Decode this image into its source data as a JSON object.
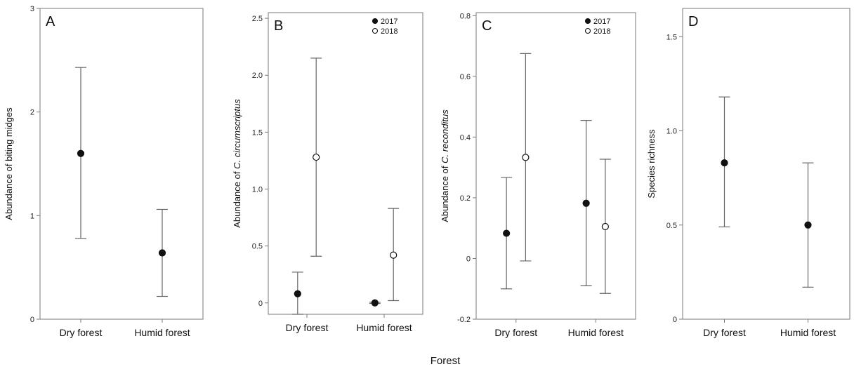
{
  "figure": {
    "x_title": "Forest"
  },
  "chart_data": [
    {
      "type": "scatter",
      "panel": "A",
      "ylabel_parts": [
        {
          "text": "Abundance of biting midges",
          "italic": false
        }
      ],
      "ylim": [
        0,
        3
      ],
      "yticks": [
        0,
        1,
        2,
        3
      ],
      "yticklabels": [
        "0",
        "1",
        "2",
        "3"
      ],
      "categories": [
        "Dry forest",
        "Humid forest"
      ],
      "legend": false,
      "series": [
        {
          "color": "#111111",
          "filled": true,
          "points": [
            {
              "category": "Dry forest",
              "y": 1.6,
              "low": 0.78,
              "high": 2.43
            },
            {
              "category": "Humid forest",
              "y": 0.64,
              "low": 0.22,
              "high": 1.06
            }
          ]
        }
      ],
      "grid": false
    },
    {
      "type": "scatter",
      "panel": "B",
      "ylabel_parts": [
        {
          "text": "Abundance of ",
          "italic": false
        },
        {
          "text": "C. circumscriptus",
          "italic": true
        }
      ],
      "ylim": [
        -0.1,
        2.55
      ],
      "yticks": [
        0,
        0.5,
        1.0,
        1.5,
        2.0,
        2.5
      ],
      "yticklabels": [
        "0",
        "0.5",
        "1.0",
        "1.5",
        "2.0",
        "2.5"
      ],
      "categories": [
        "Dry forest",
        "Humid forest"
      ],
      "legend": true,
      "legend_position": "top-right",
      "series": [
        {
          "name": "2017",
          "color": "#111111",
          "filled": true,
          "points": [
            {
              "category": "Dry forest",
              "y": 0.08,
              "low": -0.1,
              "high": 0.27
            },
            {
              "category": "Humid forest",
              "y": 0.0,
              "low": -0.005,
              "high": 0.005
            }
          ]
        },
        {
          "name": "2018",
          "color": "#111111",
          "filled": false,
          "points": [
            {
              "category": "Dry forest",
              "y": 1.28,
              "low": 0.41,
              "high": 2.15
            },
            {
              "category": "Humid forest",
              "y": 0.42,
              "low": 0.02,
              "high": 0.83
            }
          ]
        }
      ],
      "grid": false
    },
    {
      "type": "scatter",
      "panel": "C",
      "ylabel_parts": [
        {
          "text": "Abundance of ",
          "italic": false
        },
        {
          "text": "C. reconditus",
          "italic": true
        }
      ],
      "ylim": [
        -0.2,
        0.81
      ],
      "yticks": [
        -0.2,
        0,
        0.2,
        0.4,
        0.6,
        0.8
      ],
      "yticklabels": [
        "-0.2",
        "0",
        "0.2",
        "0.4",
        "0.6",
        "0.8"
      ],
      "categories": [
        "Dry forest",
        "Humid forest"
      ],
      "legend": true,
      "legend_position": "top-right",
      "series": [
        {
          "name": "2017",
          "color": "#111111",
          "filled": true,
          "points": [
            {
              "category": "Dry forest",
              "y": 0.083,
              "low": -0.1,
              "high": 0.267
            },
            {
              "category": "Humid forest",
              "y": 0.182,
              "low": -0.09,
              "high": 0.455
            }
          ]
        },
        {
          "name": "2018",
          "color": "#111111",
          "filled": false,
          "points": [
            {
              "category": "Dry forest",
              "y": 0.333,
              "low": -0.008,
              "high": 0.675
            },
            {
              "category": "Humid forest",
              "y": 0.105,
              "low": -0.115,
              "high": 0.327
            }
          ]
        }
      ],
      "grid": false
    },
    {
      "type": "scatter",
      "panel": "D",
      "ylabel_parts": [
        {
          "text": "Species richness",
          "italic": false
        }
      ],
      "ylim": [
        0,
        1.65
      ],
      "yticks": [
        0,
        0.5,
        1.0,
        1.5
      ],
      "yticklabels": [
        "0",
        "0.5",
        "1.0",
        "1.5"
      ],
      "categories": [
        "Dry forest",
        "Humid forest"
      ],
      "legend": false,
      "series": [
        {
          "color": "#111111",
          "filled": true,
          "points": [
            {
              "category": "Dry forest",
              "y": 0.83,
              "low": 0.49,
              "high": 1.18
            },
            {
              "category": "Humid forest",
              "y": 0.5,
              "low": 0.17,
              "high": 0.83
            }
          ]
        }
      ],
      "grid": false
    }
  ]
}
